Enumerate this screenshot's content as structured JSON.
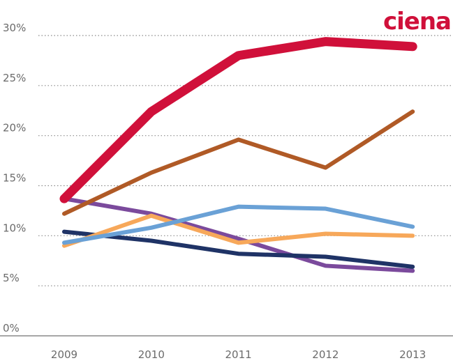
{
  "chart_data": {
    "type": "line",
    "logo": "ciena",
    "categories": [
      "2009",
      "2010",
      "2011",
      "2012",
      "2013"
    ],
    "series": [
      {
        "color": "#d0103a",
        "values": [
          13.7,
          22.4,
          28.0,
          29.4,
          28.9
        ]
      },
      {
        "color": "#b05a26",
        "values": [
          12.2,
          16.3,
          19.6,
          16.8,
          22.4
        ]
      },
      {
        "color": "#6aa1d6",
        "values": [
          9.3,
          10.8,
          12.9,
          12.7,
          10.9
        ]
      },
      {
        "color": "#f7a85a",
        "values": [
          9.0,
          12.0,
          9.3,
          10.2,
          10.0
        ]
      },
      {
        "color": "#1f3366",
        "values": [
          10.4,
          9.5,
          8.2,
          7.9,
          6.9
        ]
      },
      {
        "color": "#7b4a9c",
        "values": [
          13.7,
          12.2,
          9.7,
          7.0,
          6.5
        ]
      }
    ],
    "ylim": [
      0,
      30
    ],
    "yticks": [
      {
        "value": 0,
        "label": "0%"
      },
      {
        "value": 5,
        "label": "5%"
      },
      {
        "value": 10,
        "label": "10%"
      },
      {
        "value": 15,
        "label": "15%"
      },
      {
        "value": 20,
        "label": "20%"
      },
      {
        "value": 25,
        "label": "25%"
      },
      {
        "value": 30,
        "label": "30%"
      }
    ],
    "grid": true
  }
}
